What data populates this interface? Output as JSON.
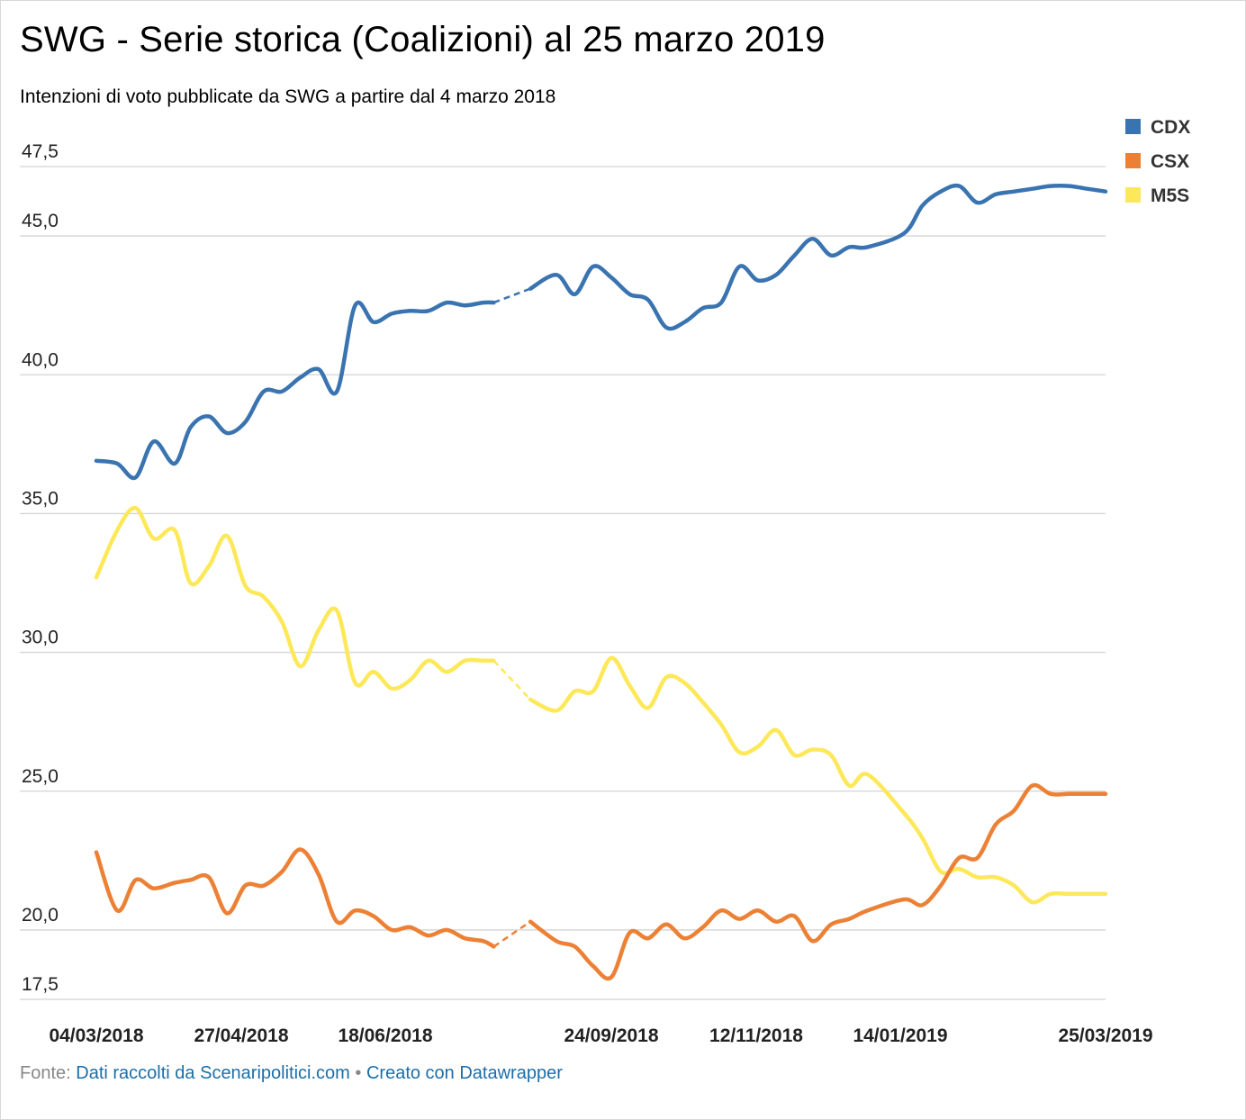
{
  "title": "SWG - Serie storica (Coalizioni) al 25 marzo 2019",
  "subtitle": "Intenzioni di voto pubblicate da SWG a partire dal 4 marzo 2018",
  "footer": {
    "source_label": "Fonte:",
    "source_link": "Dati raccolti da Scenaripolitici.com",
    "separator": "•",
    "credit_link": "Creato con Datawrapper"
  },
  "chart_data": {
    "type": "line",
    "title": "SWG - Serie storica (Coalizioni) al 25 marzo 2019",
    "subtitle": "Intenzioni di voto pubblicate da SWG a partire dal 4 marzo 2018",
    "xlabel": "",
    "ylabel": "",
    "ylim": [
      17.5,
      47.5
    ],
    "yticks": [
      "47,5",
      "45,0",
      "40,0",
      "35,0",
      "30,0",
      "25,0",
      "20,0",
      "17,5"
    ],
    "ytick_values": [
      47.5,
      45,
      40,
      35,
      30,
      25,
      20,
      17.5
    ],
    "xlim": [
      "2018-03-04",
      "2019-03-25"
    ],
    "xticks": [
      "04/03/2018",
      "27/04/2018",
      "18/06/2018",
      "24/09/2018",
      "12/11/2018",
      "14/01/2019",
      "25/03/2019"
    ],
    "xtick_dates": [
      "2018-03-04",
      "2018-04-27",
      "2018-06-18",
      "2018-09-24",
      "2018-11-12",
      "2019-01-14",
      "2019-03-25"
    ],
    "grid": true,
    "legend_position": "top-right",
    "gap": [
      "2018-08-03",
      "2018-08-17"
    ],
    "x": [
      "2018-03-04",
      "2018-03-12",
      "2018-03-19",
      "2018-03-26",
      "2018-04-03",
      "2018-04-09",
      "2018-04-16",
      "2018-04-23",
      "2018-04-30",
      "2018-05-07",
      "2018-05-14",
      "2018-05-21",
      "2018-05-28",
      "2018-06-04",
      "2018-06-11",
      "2018-06-18",
      "2018-06-25",
      "2018-07-02",
      "2018-07-09",
      "2018-07-16",
      "2018-07-23",
      "2018-07-30",
      "2018-08-03",
      "2018-08-17",
      "2018-08-27",
      "2018-09-03",
      "2018-09-10",
      "2018-09-17",
      "2018-09-24",
      "2018-10-01",
      "2018-10-08",
      "2018-10-15",
      "2018-10-22",
      "2018-10-29",
      "2018-11-05",
      "2018-11-12",
      "2018-11-19",
      "2018-11-26",
      "2018-12-03",
      "2018-12-10",
      "2018-12-17",
      "2018-12-24",
      "2019-01-07",
      "2019-01-14",
      "2019-01-21",
      "2019-01-28",
      "2019-02-04",
      "2019-02-11",
      "2019-02-18",
      "2019-02-25",
      "2019-03-04",
      "2019-03-11",
      "2019-03-18",
      "2019-03-25"
    ],
    "series": [
      {
        "name": "CDX",
        "color": "#3a74b0",
        "values": [
          36.9,
          36.8,
          36.3,
          37.6,
          36.8,
          38.1,
          38.5,
          37.9,
          38.3,
          39.4,
          39.4,
          39.9,
          40.2,
          39.4,
          42.5,
          41.9,
          42.2,
          42.3,
          42.3,
          42.6,
          42.5,
          42.6,
          42.6,
          43.1,
          43.6,
          42.9,
          43.9,
          43.5,
          42.9,
          42.7,
          41.7,
          41.9,
          42.4,
          42.6,
          43.9,
          43.4,
          43.6,
          44.3,
          44.9,
          44.3,
          44.6,
          44.6,
          45.1,
          46.1,
          46.6,
          46.8,
          46.2,
          46.5,
          46.6,
          46.7,
          46.8,
          46.8,
          46.7,
          46.6
        ]
      },
      {
        "name": "CSX",
        "color": "#ec8136",
        "values": [
          22.8,
          20.7,
          21.8,
          21.5,
          21.7,
          21.8,
          21.9,
          20.6,
          21.6,
          21.6,
          22.1,
          22.9,
          22.0,
          20.3,
          20.7,
          20.5,
          20.0,
          20.1,
          19.8,
          20.0,
          19.7,
          19.6,
          19.4,
          20.3,
          19.6,
          19.4,
          18.7,
          18.3,
          19.9,
          19.7,
          20.2,
          19.7,
          20.1,
          20.7,
          20.4,
          20.7,
          20.3,
          20.5,
          19.6,
          20.2,
          20.4,
          20.7,
          21.1,
          20.9,
          21.6,
          22.6,
          22.6,
          23.8,
          24.3,
          25.2,
          24.9,
          24.9,
          24.9,
          24.9
        ]
      },
      {
        "name": "M5S",
        "color": "#fde85a",
        "values": [
          32.7,
          34.4,
          35.2,
          34.1,
          34.4,
          32.5,
          33.1,
          34.2,
          32.4,
          32.0,
          31.1,
          29.5,
          30.8,
          31.5,
          28.9,
          29.3,
          28.7,
          29.0,
          29.7,
          29.3,
          29.7,
          29.7,
          29.7,
          28.3,
          27.9,
          28.6,
          28.6,
          29.8,
          28.8,
          28.0,
          29.1,
          28.9,
          28.2,
          27.4,
          26.4,
          26.6,
          27.2,
          26.3,
          26.5,
          26.3,
          25.2,
          25.6,
          24.2,
          23.3,
          22.1,
          22.2,
          21.9,
          21.9,
          21.6,
          21.0,
          21.3,
          21.3,
          21.3,
          21.3
        ]
      }
    ]
  }
}
